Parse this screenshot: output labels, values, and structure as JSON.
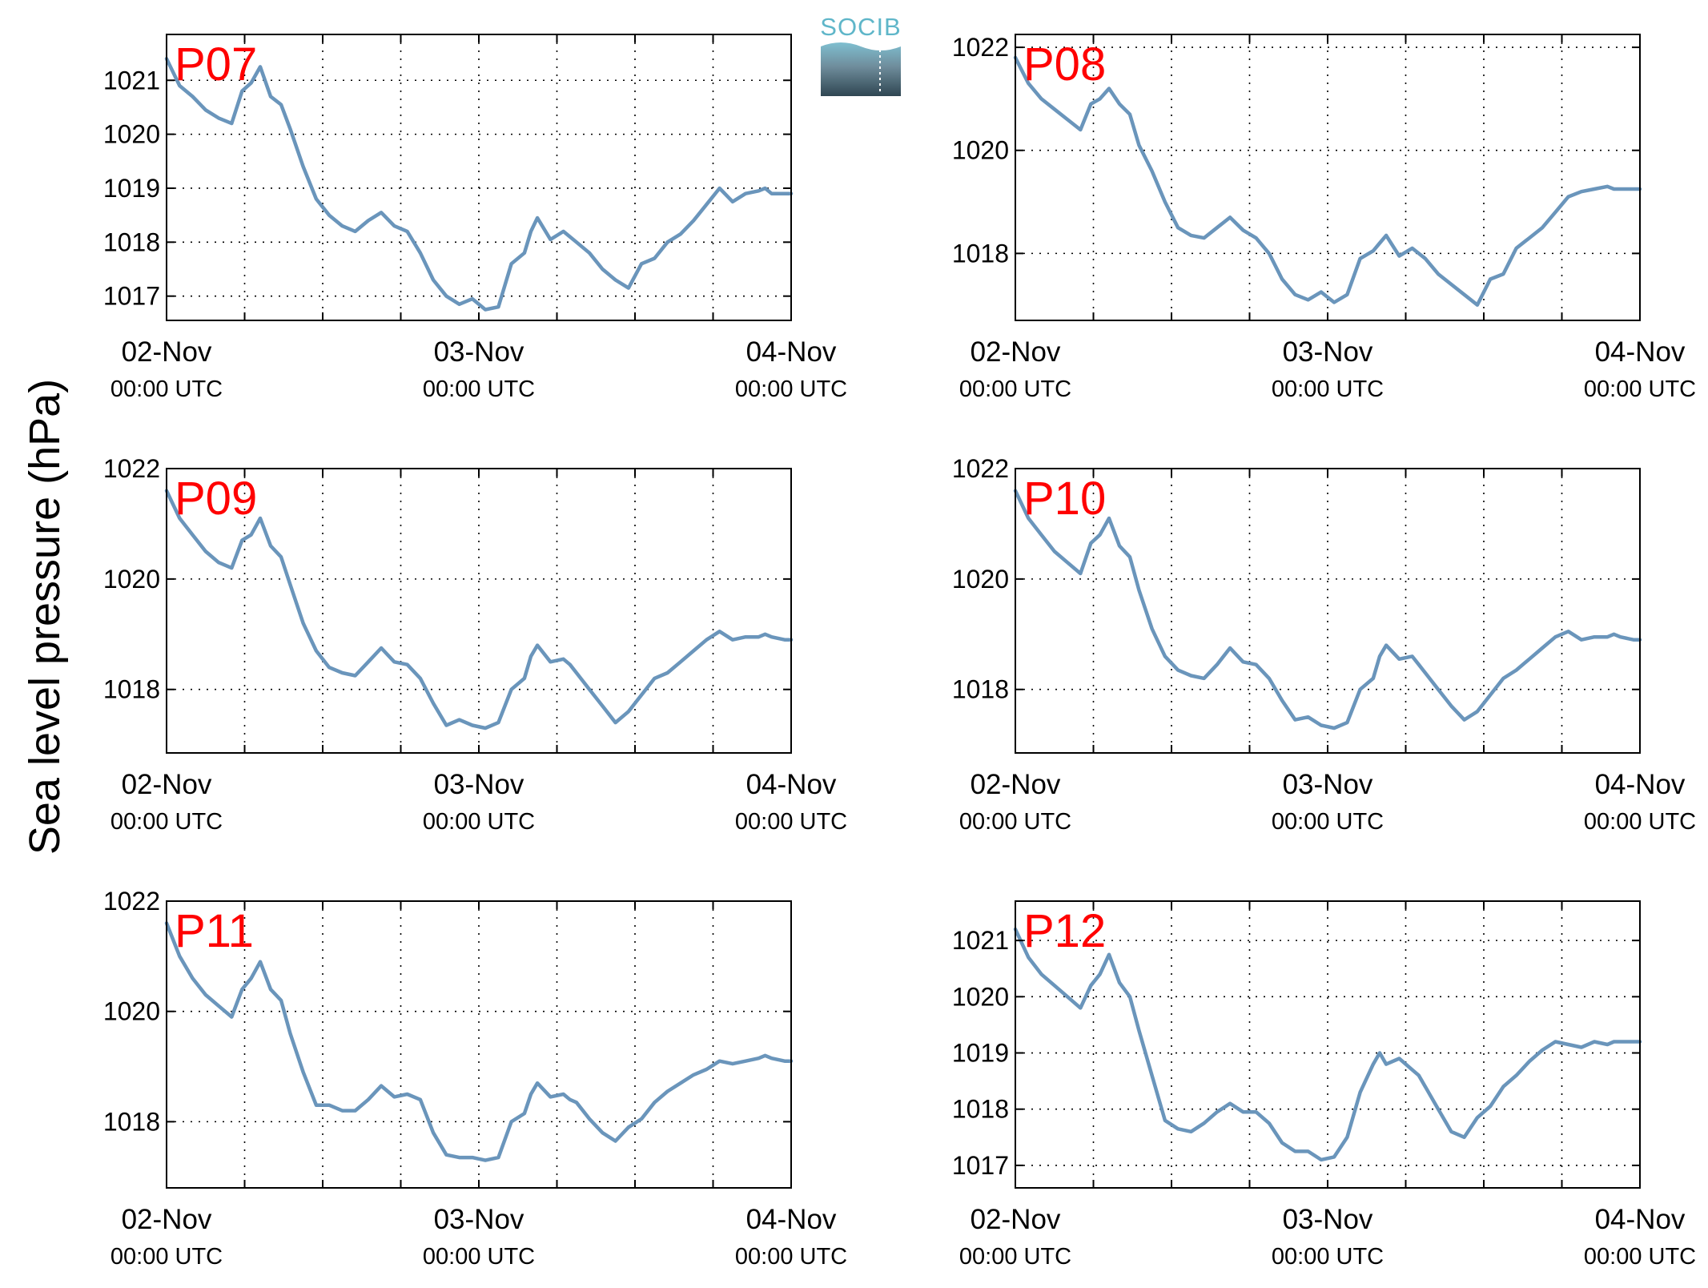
{
  "figure": {
    "ylabel": "Sea level pressure (hPa)",
    "logo": {
      "text": "SOCIB",
      "color": "#5fb6c9"
    },
    "line_color": "#6a95bb",
    "label_color": "#ff0000",
    "x_ticks": [
      {
        "x": 0,
        "date": "02-Nov",
        "time": "00:00 UTC"
      },
      {
        "x": 24,
        "date": "03-Nov",
        "time": "00:00 UTC"
      },
      {
        "x": 48,
        "date": "04-Nov",
        "time": "00:00 UTC"
      }
    ],
    "grid": true
  },
  "chart_data": [
    {
      "type": "line",
      "label": "P07",
      "xlabel": "",
      "ylabel": "Sea level pressure (hPa)",
      "x_unit": "hours since 02-Nov 00:00 UTC",
      "xlim": [
        0,
        48
      ],
      "ylim": [
        1016.55,
        1021.85
      ],
      "yticks": [
        1017,
        1018,
        1019,
        1020,
        1021
      ],
      "x": [
        0,
        1,
        2,
        3,
        4,
        5,
        5.8,
        6.5,
        7.2,
        8,
        8.8,
        9.5,
        10.5,
        11.5,
        12.5,
        13.5,
        14.5,
        15.5,
        16.5,
        17.5,
        18.5,
        19.5,
        20.5,
        21.5,
        22.5,
        23.5,
        24.5,
        25.5,
        26.5,
        27.5,
        28,
        28.5,
        29.5,
        30.5,
        31,
        31.5,
        32.5,
        33.5,
        34.5,
        35.5,
        36.5,
        37.5,
        38.5,
        39.5,
        40.5,
        41.5,
        42.5,
        43.5,
        44.5,
        45.5,
        46,
        46.5,
        47.5,
        48
      ],
      "y": [
        1021.4,
        1020.9,
        1020.7,
        1020.45,
        1020.3,
        1020.2,
        1020.8,
        1020.95,
        1021.25,
        1020.7,
        1020.55,
        1020.1,
        1019.4,
        1018.8,
        1018.5,
        1018.3,
        1018.2,
        1018.4,
        1018.55,
        1018.3,
        1018.2,
        1017.8,
        1017.3,
        1017.0,
        1016.85,
        1016.95,
        1016.75,
        1016.8,
        1017.6,
        1017.8,
        1018.2,
        1018.45,
        1018.05,
        1018.2,
        1018.1,
        1018.0,
        1017.8,
        1017.5,
        1017.3,
        1017.15,
        1017.6,
        1017.7,
        1018.0,
        1018.15,
        1018.4,
        1018.7,
        1019.0,
        1018.75,
        1018.9,
        1018.95,
        1019.0,
        1018.9,
        1018.9,
        1018.9
      ]
    },
    {
      "type": "line",
      "label": "P08",
      "xlabel": "",
      "ylabel": "Sea level pressure (hPa)",
      "x_unit": "hours since 02-Nov 00:00 UTC",
      "xlim": [
        0,
        48
      ],
      "ylim": [
        1016.7,
        1022.25
      ],
      "yticks": [
        1018,
        1020,
        1022
      ],
      "x": [
        0,
        1,
        2,
        3,
        4,
        5,
        5.8,
        6.5,
        7.2,
        8,
        8.8,
        9.5,
        10.5,
        11.5,
        12.5,
        13.5,
        14.5,
        15.5,
        16.5,
        17.5,
        18.5,
        19.5,
        20.5,
        21.5,
        22.5,
        23.5,
        24.5,
        25.5,
        26.5,
        27.5,
        28,
        28.5,
        29.5,
        30.5,
        31,
        31.5,
        32.5,
        33.5,
        34.5,
        35.5,
        36.5,
        37.5,
        38.5,
        39.5,
        40.5,
        41.5,
        42.5,
        43.5,
        44.5,
        45.5,
        46,
        46.5,
        47.5,
        48
      ],
      "y": [
        1021.8,
        1021.3,
        1021.0,
        1020.8,
        1020.6,
        1020.4,
        1020.9,
        1021.0,
        1021.2,
        1020.9,
        1020.7,
        1020.1,
        1019.6,
        1019.0,
        1018.5,
        1018.35,
        1018.3,
        1018.5,
        1018.7,
        1018.45,
        1018.3,
        1018.0,
        1017.5,
        1017.2,
        1017.1,
        1017.25,
        1017.05,
        1017.2,
        1017.9,
        1018.05,
        1018.2,
        1018.35,
        1017.95,
        1018.1,
        1018.0,
        1017.9,
        1017.6,
        1017.4,
        1017.2,
        1017.0,
        1017.5,
        1017.6,
        1018.1,
        1018.3,
        1018.5,
        1018.8,
        1019.1,
        1019.2,
        1019.25,
        1019.3,
        1019.25,
        1019.25,
        1019.25,
        1019.25
      ]
    },
    {
      "type": "line",
      "label": "P09",
      "xlabel": "",
      "ylabel": "Sea level pressure (hPa)",
      "x_unit": "hours since 02-Nov 00:00 UTC",
      "xlim": [
        0,
        48
      ],
      "ylim": [
        1016.85,
        1022.0
      ],
      "yticks": [
        1018,
        1020,
        1022
      ],
      "x": [
        0,
        1,
        2,
        3,
        4,
        5,
        5.8,
        6.5,
        7.2,
        8,
        8.8,
        9.5,
        10.5,
        11.5,
        12.5,
        13.5,
        14.5,
        15.5,
        16.5,
        17.5,
        18.5,
        19.5,
        20.5,
        21.5,
        22.5,
        23.5,
        24.5,
        25.5,
        26.5,
        27.5,
        28,
        28.5,
        29.5,
        30.5,
        31,
        31.5,
        32.5,
        33.5,
        34.5,
        35.5,
        36.5,
        37.5,
        38.5,
        39.5,
        40.5,
        41.5,
        42.5,
        43.5,
        44.5,
        45.5,
        46,
        46.5,
        47.5,
        48
      ],
      "y": [
        1021.6,
        1021.1,
        1020.8,
        1020.5,
        1020.3,
        1020.2,
        1020.7,
        1020.8,
        1021.1,
        1020.6,
        1020.4,
        1019.9,
        1019.2,
        1018.7,
        1018.4,
        1018.3,
        1018.25,
        1018.5,
        1018.75,
        1018.5,
        1018.45,
        1018.2,
        1017.75,
        1017.35,
        1017.45,
        1017.35,
        1017.3,
        1017.4,
        1018.0,
        1018.2,
        1018.6,
        1018.8,
        1018.5,
        1018.55,
        1018.45,
        1018.3,
        1018.0,
        1017.7,
        1017.4,
        1017.6,
        1017.9,
        1018.2,
        1018.3,
        1018.5,
        1018.7,
        1018.9,
        1019.05,
        1018.9,
        1018.95,
        1018.95,
        1019.0,
        1018.95,
        1018.9,
        1018.9
      ]
    },
    {
      "type": "line",
      "label": "P10",
      "xlabel": "",
      "ylabel": "Sea level pressure (hPa)",
      "x_unit": "hours since 02-Nov 00:00 UTC",
      "xlim": [
        0,
        48
      ],
      "ylim": [
        1016.85,
        1022.0
      ],
      "yticks": [
        1018,
        1020,
        1022
      ],
      "x": [
        0,
        1,
        2,
        3,
        4,
        5,
        5.8,
        6.5,
        7.2,
        8,
        8.8,
        9.5,
        10.5,
        11.5,
        12.5,
        13.5,
        14.5,
        15.5,
        16.5,
        17.5,
        18.5,
        19.5,
        20.5,
        21.5,
        22.5,
        23.5,
        24.5,
        25.5,
        26.5,
        27.5,
        28,
        28.5,
        29.5,
        30.5,
        31,
        31.5,
        32.5,
        33.5,
        34.5,
        35.5,
        36.5,
        37.5,
        38.5,
        39.5,
        40.5,
        41.5,
        42.5,
        43.5,
        44.5,
        45.5,
        46,
        46.5,
        47.5,
        48
      ],
      "y": [
        1021.6,
        1021.1,
        1020.8,
        1020.5,
        1020.3,
        1020.1,
        1020.65,
        1020.8,
        1021.1,
        1020.6,
        1020.4,
        1019.8,
        1019.1,
        1018.6,
        1018.35,
        1018.25,
        1018.2,
        1018.45,
        1018.75,
        1018.5,
        1018.45,
        1018.2,
        1017.8,
        1017.45,
        1017.5,
        1017.35,
        1017.3,
        1017.4,
        1018.0,
        1018.2,
        1018.6,
        1018.8,
        1018.55,
        1018.6,
        1018.45,
        1018.3,
        1018.0,
        1017.7,
        1017.45,
        1017.6,
        1017.9,
        1018.2,
        1018.35,
        1018.55,
        1018.75,
        1018.95,
        1019.05,
        1018.9,
        1018.95,
        1018.95,
        1019.0,
        1018.95,
        1018.9,
        1018.9
      ]
    },
    {
      "type": "line",
      "label": "P11",
      "xlabel": "",
      "ylabel": "Sea level pressure (hPa)",
      "x_unit": "hours since 02-Nov 00:00 UTC",
      "xlim": [
        0,
        48
      ],
      "ylim": [
        1016.8,
        1022.0
      ],
      "yticks": [
        1018,
        1020,
        1022
      ],
      "x": [
        0,
        1,
        2,
        3,
        4,
        5,
        5.8,
        6.5,
        7.2,
        8,
        8.8,
        9.5,
        10.5,
        11.5,
        12.5,
        13.5,
        14.5,
        15.5,
        16.5,
        17.5,
        18.5,
        19.5,
        20.5,
        21.5,
        22.5,
        23.5,
        24.5,
        25.5,
        26.5,
        27.5,
        28,
        28.5,
        29.5,
        30.5,
        31,
        31.5,
        32.5,
        33.5,
        34.5,
        35.5,
        36.5,
        37.5,
        38.5,
        39.5,
        40.5,
        41.5,
        42.5,
        43.5,
        44.5,
        45.5,
        46,
        46.5,
        47.5,
        48
      ],
      "y": [
        1021.6,
        1021.0,
        1020.6,
        1020.3,
        1020.1,
        1019.9,
        1020.4,
        1020.6,
        1020.9,
        1020.4,
        1020.2,
        1019.6,
        1018.9,
        1018.3,
        1018.3,
        1018.2,
        1018.2,
        1018.4,
        1018.65,
        1018.45,
        1018.5,
        1018.4,
        1017.8,
        1017.4,
        1017.35,
        1017.35,
        1017.3,
        1017.35,
        1018.0,
        1018.15,
        1018.5,
        1018.7,
        1018.45,
        1018.5,
        1018.4,
        1018.35,
        1018.05,
        1017.8,
        1017.65,
        1017.9,
        1018.05,
        1018.35,
        1018.55,
        1018.7,
        1018.85,
        1018.95,
        1019.1,
        1019.05,
        1019.1,
        1019.15,
        1019.2,
        1019.15,
        1019.1,
        1019.1
      ]
    },
    {
      "type": "line",
      "label": "P12",
      "xlabel": "",
      "ylabel": "Sea level pressure (hPa)",
      "x_unit": "hours since 02-Nov 00:00 UTC",
      "xlim": [
        0,
        48
      ],
      "ylim": [
        1016.6,
        1021.7
      ],
      "yticks": [
        1017,
        1018,
        1019,
        1020,
        1021
      ],
      "x": [
        0,
        1,
        2,
        3,
        4,
        5,
        5.8,
        6.5,
        7.2,
        8,
        8.8,
        9.5,
        10.5,
        11.5,
        12.5,
        13.5,
        14.5,
        15.5,
        16.5,
        17.5,
        18.5,
        19.5,
        20.5,
        21.5,
        22.5,
        23.5,
        24.5,
        25.5,
        26.5,
        27.5,
        28,
        28.5,
        29.5,
        30.5,
        31,
        31.5,
        32.5,
        33.5,
        34.5,
        35.5,
        36.5,
        37.5,
        38.5,
        39.5,
        40.5,
        41.5,
        42.5,
        43.5,
        44.5,
        45.5,
        46,
        46.5,
        47.5,
        48
      ],
      "y": [
        1021.2,
        1020.7,
        1020.4,
        1020.2,
        1020.0,
        1019.8,
        1020.2,
        1020.4,
        1020.75,
        1020.25,
        1020.0,
        1019.4,
        1018.6,
        1017.8,
        1017.65,
        1017.6,
        1017.75,
        1017.95,
        1018.1,
        1017.95,
        1017.95,
        1017.75,
        1017.4,
        1017.25,
        1017.25,
        1017.1,
        1017.15,
        1017.5,
        1018.3,
        1018.8,
        1019.0,
        1018.8,
        1018.9,
        1018.7,
        1018.6,
        1018.4,
        1018.0,
        1017.6,
        1017.5,
        1017.85,
        1018.05,
        1018.4,
        1018.6,
        1018.85,
        1019.05,
        1019.2,
        1019.15,
        1019.1,
        1019.2,
        1019.15,
        1019.2,
        1019.2,
        1019.2,
        1019.2
      ]
    }
  ]
}
